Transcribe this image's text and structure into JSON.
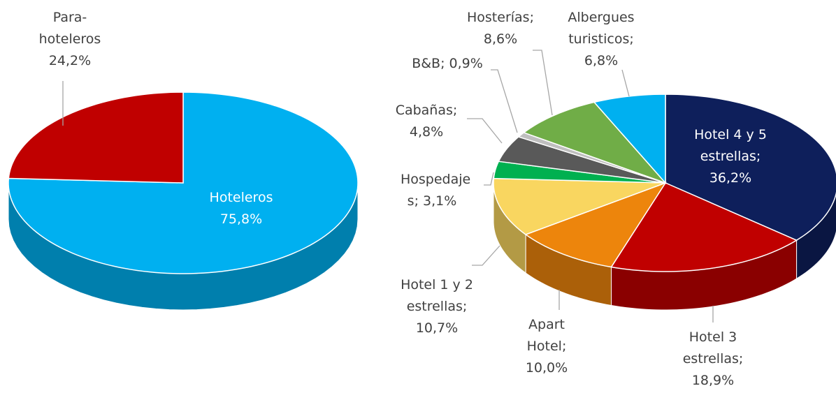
{
  "chart_data": [
    {
      "type": "pie",
      "categories": [
        "Hoteleros",
        "Para-hoteleros"
      ],
      "values": [
        75.8,
        24.2
      ],
      "value_labels": [
        "75,8%",
        "24,2%"
      ],
      "colors": [
        "#00b0f0",
        "#c00000"
      ]
    },
    {
      "type": "pie",
      "categories": [
        "Hotel 4 y 5 estrellas;",
        "Hotel 3 estrellas;",
        "Apart Hotel;",
        "Hotel 1 y 2 estrellas;",
        "Hospedaje s;",
        "Cabañas;",
        "B&B;",
        "Hosterías;",
        "Albergues turisticos;"
      ],
      "values": [
        36.2,
        18.9,
        10.0,
        10.7,
        3.1,
        4.8,
        0.9,
        8.6,
        6.8
      ],
      "value_labels": [
        "36,2%",
        "18,9%",
        "10,0%",
        "10,7%",
        "3,1%",
        "4,8%",
        "0,9%",
        "8,6%",
        "6,8%"
      ],
      "colors": [
        "#0e1f5b",
        "#c00000",
        "#ed850c",
        "#f9d660",
        "#00b050",
        "#595959",
        "#bfbfbf",
        "#70ad47",
        "#00b0f0"
      ]
    }
  ]
}
